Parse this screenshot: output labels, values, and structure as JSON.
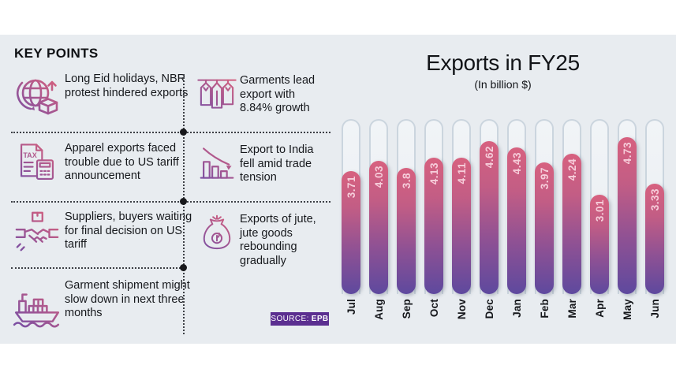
{
  "panel": {
    "background": "#e8ecf0"
  },
  "key_points": {
    "heading": "KEY POINTS",
    "items": [
      {
        "icon": "globe-export-icon",
        "text": "Long Eid holidays, NBR protest hindered exports"
      },
      {
        "icon": "garments-hangers-icon",
        "text": "Garments lead export with 8.84% growth"
      },
      {
        "icon": "tax-document-icon",
        "text": "Apparel exports faced trouble due to US tariff announcement"
      },
      {
        "icon": "declining-chart-icon",
        "text": "Export to India fell amid trade tension"
      },
      {
        "icon": "handshake-deal-icon",
        "text": "Suppliers, buyers waiting for final decision on US tariff"
      },
      {
        "icon": "jute-sack-icon",
        "text": "Exports of jute, jute goods rebounding gradually"
      },
      {
        "icon": "cargo-ship-icon",
        "text": "Garment shipment might slow down in next three months"
      }
    ]
  },
  "source_badge": {
    "text": "SOURCE:",
    "value": "EPB",
    "background": "#5b2f90"
  },
  "chart_data": {
    "type": "bar",
    "title": "Exports in FY25",
    "subtitle": "(In billion $)",
    "categories": [
      "Jul",
      "Aug",
      "Sep",
      "Oct",
      "Nov",
      "Dec",
      "Jan",
      "Feb",
      "Mar",
      "Apr",
      "May",
      "Jun"
    ],
    "values": [
      3.71,
      4.03,
      3.8,
      4.13,
      4.11,
      4.62,
      4.43,
      3.97,
      4.24,
      3.01,
      4.73,
      3.33
    ],
    "value_labels": [
      "3.71",
      "4.03",
      "3.8",
      "4.13",
      "4.11",
      "4.62",
      "4.43",
      "3.97",
      "4.24",
      "3.01",
      "4.73",
      "3.33"
    ],
    "unit": "billion $",
    "ylim": [
      0,
      5.3
    ],
    "grid": false,
    "legend": "none",
    "bar_color_top": "#d7617f",
    "bar_color_bottom": "#5e499e",
    "value_label_color": "#f6cdda"
  }
}
